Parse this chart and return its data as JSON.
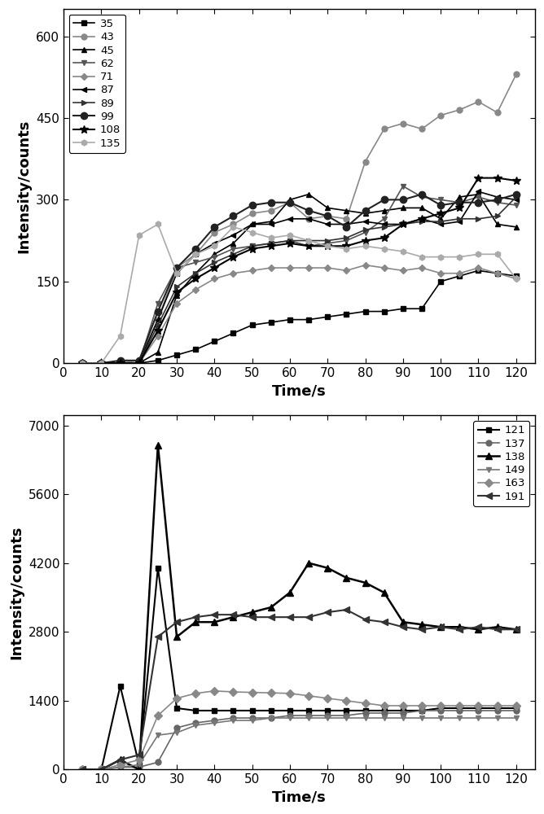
{
  "plot1": {
    "xlabel": "Time/s",
    "ylabel": "Intensity/counts",
    "xlim": [
      0,
      125
    ],
    "ylim": [
      0,
      650
    ],
    "yticks": [
      0,
      150,
      300,
      450,
      600
    ],
    "xticks": [
      0,
      10,
      20,
      30,
      40,
      50,
      60,
      70,
      80,
      90,
      100,
      110,
      120
    ],
    "legend_loc": "upper left",
    "series": [
      {
        "label": "35",
        "color": "#000000",
        "marker": "s",
        "markersize": 5,
        "lw": 1.2,
        "x": [
          5,
          10,
          15,
          20,
          25,
          30,
          35,
          40,
          45,
          50,
          55,
          60,
          65,
          70,
          75,
          80,
          85,
          90,
          95,
          100,
          105,
          110,
          115,
          120
        ],
        "y": [
          0,
          0,
          0,
          0,
          5,
          15,
          25,
          40,
          55,
          70,
          75,
          80,
          80,
          85,
          90,
          95,
          95,
          100,
          100,
          150,
          160,
          170,
          165,
          160
        ]
      },
      {
        "label": "43",
        "color": "#888888",
        "marker": "o",
        "markersize": 5,
        "lw": 1.2,
        "x": [
          5,
          10,
          15,
          20,
          25,
          30,
          35,
          40,
          45,
          50,
          55,
          60,
          65,
          70,
          75,
          80,
          85,
          90,
          95,
          100,
          105,
          110,
          115,
          120
        ],
        "y": [
          0,
          0,
          0,
          5,
          80,
          175,
          200,
          240,
          255,
          275,
          280,
          295,
          265,
          270,
          265,
          370,
          430,
          440,
          430,
          455,
          465,
          480,
          460,
          530
        ]
      },
      {
        "label": "45",
        "color": "#000000",
        "marker": "^",
        "markersize": 5,
        "lw": 1.2,
        "x": [
          5,
          10,
          15,
          20,
          25,
          30,
          35,
          40,
          45,
          50,
          55,
          60,
          65,
          70,
          75,
          80,
          85,
          90,
          95,
          100,
          105,
          110,
          115,
          120
        ],
        "y": [
          0,
          0,
          0,
          0,
          20,
          125,
          165,
          200,
          220,
          255,
          260,
          300,
          310,
          285,
          280,
          275,
          280,
          285,
          285,
          265,
          305,
          310,
          255,
          250
        ]
      },
      {
        "label": "62",
        "color": "#555555",
        "marker": "v",
        "markersize": 5,
        "lw": 1.2,
        "x": [
          5,
          10,
          15,
          20,
          25,
          30,
          35,
          40,
          45,
          50,
          55,
          60,
          65,
          70,
          75,
          80,
          85,
          90,
          95,
          100,
          105,
          110,
          115,
          120
        ],
        "y": [
          0,
          0,
          0,
          0,
          110,
          175,
          185,
          195,
          210,
          215,
          220,
          225,
          215,
          220,
          225,
          240,
          265,
          325,
          305,
          300,
          295,
          305,
          295,
          290
        ]
      },
      {
        "label": "71",
        "color": "#888888",
        "marker": "D",
        "markersize": 4,
        "lw": 1.2,
        "x": [
          5,
          10,
          15,
          20,
          25,
          30,
          35,
          40,
          45,
          50,
          55,
          60,
          65,
          70,
          75,
          80,
          85,
          90,
          95,
          100,
          105,
          110,
          115,
          120
        ],
        "y": [
          0,
          0,
          0,
          0,
          50,
          110,
          135,
          155,
          165,
          170,
          175,
          175,
          175,
          175,
          170,
          180,
          175,
          170,
          175,
          165,
          165,
          175,
          165,
          155
        ]
      },
      {
        "label": "87",
        "color": "#000000",
        "marker": "<",
        "markersize": 5,
        "lw": 1.2,
        "x": [
          5,
          10,
          15,
          20,
          25,
          30,
          35,
          40,
          45,
          50,
          55,
          60,
          65,
          70,
          75,
          80,
          85,
          90,
          95,
          100,
          105,
          110,
          115,
          120
        ],
        "y": [
          0,
          0,
          0,
          0,
          80,
          165,
          200,
          220,
          235,
          255,
          255,
          265,
          265,
          255,
          255,
          260,
          255,
          255,
          265,
          255,
          260,
          315,
          305,
          300
        ]
      },
      {
        "label": "89",
        "color": "#333333",
        "marker": ">",
        "markersize": 5,
        "lw": 1.2,
        "x": [
          5,
          10,
          15,
          20,
          25,
          30,
          35,
          40,
          45,
          50,
          55,
          60,
          65,
          70,
          75,
          80,
          85,
          90,
          95,
          100,
          105,
          110,
          115,
          120
        ],
        "y": [
          0,
          0,
          0,
          0,
          70,
          140,
          165,
          185,
          200,
          215,
          220,
          225,
          225,
          225,
          230,
          245,
          250,
          255,
          260,
          260,
          265,
          265,
          270,
          305
        ]
      },
      {
        "label": "99",
        "color": "#222222",
        "marker": "o",
        "markersize": 6,
        "lw": 1.5,
        "x": [
          5,
          10,
          15,
          20,
          25,
          30,
          35,
          40,
          45,
          50,
          55,
          60,
          65,
          70,
          75,
          80,
          85,
          90,
          95,
          100,
          105,
          110,
          115,
          120
        ],
        "y": [
          0,
          0,
          5,
          5,
          95,
          175,
          210,
          250,
          270,
          290,
          295,
          295,
          280,
          270,
          250,
          280,
          300,
          300,
          310,
          290,
          295,
          295,
          300,
          310
        ]
      },
      {
        "label": "108",
        "color": "#000000",
        "marker": "*",
        "markersize": 7,
        "lw": 1.5,
        "x": [
          5,
          10,
          15,
          20,
          25,
          30,
          35,
          40,
          45,
          50,
          55,
          60,
          65,
          70,
          75,
          80,
          85,
          90,
          95,
          100,
          105,
          110,
          115,
          120
        ],
        "y": [
          0,
          0,
          0,
          0,
          60,
          130,
          155,
          175,
          195,
          210,
          215,
          220,
          215,
          215,
          215,
          225,
          230,
          255,
          265,
          275,
          285,
          340,
          340,
          335
        ]
      },
      {
        "label": "135",
        "color": "#aaaaaa",
        "marker": "h",
        "markersize": 5,
        "lw": 1.2,
        "x": [
          5,
          10,
          15,
          20,
          25,
          30,
          35,
          40,
          45,
          50,
          55,
          60,
          65,
          70,
          75,
          80,
          85,
          90,
          95,
          100,
          105,
          110,
          115,
          120
        ],
        "y": [
          0,
          0,
          50,
          235,
          255,
          165,
          200,
          215,
          250,
          240,
          230,
          235,
          225,
          215,
          210,
          215,
          210,
          205,
          195,
          195,
          195,
          200,
          200,
          155
        ]
      }
    ]
  },
  "plot2": {
    "xlabel": "Time/s",
    "ylabel": "Intensity/counts",
    "xlim": [
      0,
      125
    ],
    "ylim": [
      0,
      7200
    ],
    "yticks": [
      0,
      1400,
      2800,
      4200,
      5600,
      7000
    ],
    "xticks": [
      0,
      10,
      20,
      30,
      40,
      50,
      60,
      70,
      80,
      90,
      100,
      110,
      120
    ],
    "legend_loc": "upper right",
    "series": [
      {
        "label": "121",
        "color": "#000000",
        "marker": "s",
        "markersize": 5,
        "lw": 1.5,
        "x": [
          5,
          10,
          15,
          20,
          25,
          30,
          35,
          40,
          45,
          50,
          55,
          60,
          65,
          70,
          75,
          80,
          85,
          90,
          95,
          100,
          105,
          110,
          115,
          120
        ],
        "y": [
          0,
          0,
          1700,
          100,
          4100,
          1250,
          1200,
          1200,
          1200,
          1200,
          1200,
          1200,
          1200,
          1200,
          1200,
          1200,
          1200,
          1200,
          1200,
          1250,
          1250,
          1250,
          1250,
          1250
        ]
      },
      {
        "label": "137",
        "color": "#666666",
        "marker": "o",
        "markersize": 5,
        "lw": 1.2,
        "x": [
          5,
          10,
          15,
          20,
          25,
          30,
          35,
          40,
          45,
          50,
          55,
          60,
          65,
          70,
          75,
          80,
          85,
          90,
          95,
          100,
          105,
          110,
          115,
          120
        ],
        "y": [
          0,
          0,
          50,
          50,
          150,
          850,
          950,
          1000,
          1050,
          1050,
          1050,
          1100,
          1100,
          1100,
          1100,
          1150,
          1150,
          1150,
          1200,
          1200,
          1200,
          1200,
          1200,
          1200
        ]
      },
      {
        "label": "138",
        "color": "#000000",
        "marker": "^",
        "markersize": 6,
        "lw": 1.8,
        "x": [
          5,
          10,
          15,
          20,
          25,
          30,
          35,
          40,
          45,
          50,
          55,
          60,
          65,
          70,
          75,
          80,
          85,
          90,
          95,
          100,
          105,
          110,
          115,
          120
        ],
        "y": [
          0,
          0,
          200,
          0,
          6600,
          2700,
          3000,
          3000,
          3100,
          3200,
          3300,
          3600,
          4200,
          4100,
          3900,
          3800,
          3600,
          3000,
          2950,
          2900,
          2900,
          2850,
          2900,
          2850
        ]
      },
      {
        "label": "149",
        "color": "#777777",
        "marker": "v",
        "markersize": 5,
        "lw": 1.2,
        "x": [
          5,
          10,
          15,
          20,
          25,
          30,
          35,
          40,
          45,
          50,
          55,
          60,
          65,
          70,
          75,
          80,
          85,
          90,
          95,
          100,
          105,
          110,
          115,
          120
        ],
        "y": [
          0,
          0,
          50,
          100,
          700,
          750,
          900,
          950,
          1000,
          1000,
          1050,
          1050,
          1050,
          1050,
          1050,
          1050,
          1050,
          1050,
          1050,
          1050,
          1050,
          1050,
          1050,
          1050
        ]
      },
      {
        "label": "163",
        "color": "#888888",
        "marker": "D",
        "markersize": 5,
        "lw": 1.2,
        "x": [
          5,
          10,
          15,
          20,
          25,
          30,
          35,
          40,
          45,
          50,
          55,
          60,
          65,
          70,
          75,
          80,
          85,
          90,
          95,
          100,
          105,
          110,
          115,
          120
        ],
        "y": [
          0,
          0,
          100,
          200,
          1100,
          1450,
          1550,
          1600,
          1580,
          1570,
          1560,
          1550,
          1500,
          1450,
          1400,
          1350,
          1300,
          1300,
          1300,
          1300,
          1300,
          1300,
          1300,
          1300
        ]
      },
      {
        "label": "191",
        "color": "#333333",
        "marker": "<",
        "markersize": 6,
        "lw": 1.5,
        "x": [
          5,
          10,
          15,
          20,
          25,
          30,
          35,
          40,
          45,
          50,
          55,
          60,
          65,
          70,
          75,
          80,
          85,
          90,
          95,
          100,
          105,
          110,
          115,
          120
        ],
        "y": [
          0,
          0,
          200,
          300,
          2700,
          3000,
          3100,
          3150,
          3150,
          3100,
          3100,
          3100,
          3100,
          3200,
          3250,
          3050,
          3000,
          2900,
          2850,
          2900,
          2850,
          2900,
          2850,
          2850
        ]
      }
    ]
  }
}
